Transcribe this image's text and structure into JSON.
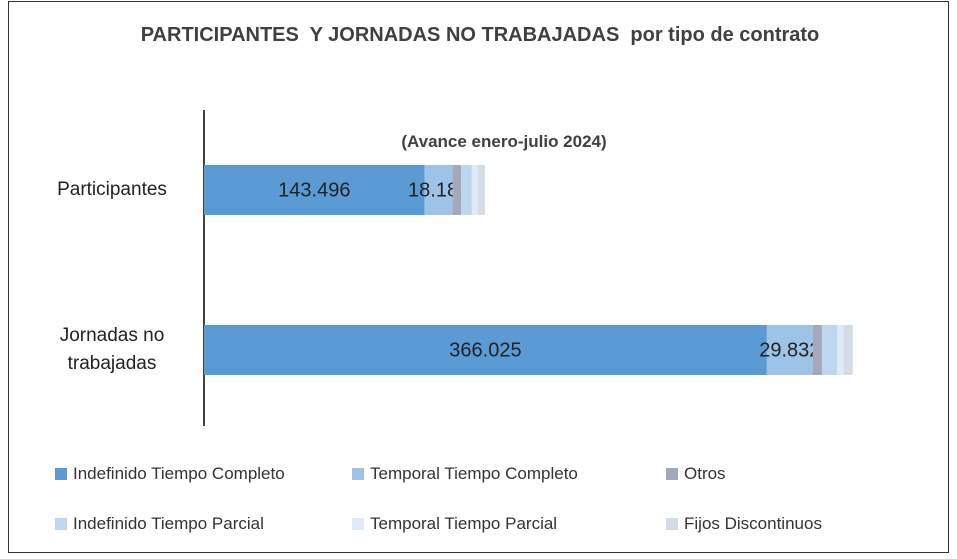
{
  "chart_data": {
    "type": "stacked_bar_horizontal",
    "title": "PARTICIPANTES  Y JORNADAS NO TRABAJADAS  por tipo de contrato",
    "subtitle": "(Avance enero-julio 2024)",
    "categories": [
      "Participantes",
      "Jornadas no trabajadas"
    ],
    "xlim": [
      0,
      450000
    ],
    "series": [
      {
        "name": "Indefinido Tiempo Completo",
        "color": "#5b9bd5",
        "values": [
          143496,
          366025
        ],
        "value_labels": [
          "143.496",
          "366.025"
        ]
      },
      {
        "name": "Temporal Tiempo Completo",
        "color": "#9dc3e6",
        "values": [
          18180,
          29832
        ],
        "value_labels": [
          "18.180",
          "29.832"
        ]
      },
      {
        "name": "Otros",
        "color": "#a5a8ba",
        "values": [
          5500,
          6000
        ]
      },
      {
        "name": "Indefinido Tiempo Parcial",
        "color": "#bdd7ee",
        "values": [
          7000,
          10000
        ]
      },
      {
        "name": "Temporal Tiempo Parcial",
        "color": "#deebf7",
        "values": [
          4000,
          4000
        ]
      },
      {
        "name": "Fijos Discontinuos",
        "color": "#d6dce5",
        "values": [
          4500,
          6000
        ]
      }
    ]
  }
}
